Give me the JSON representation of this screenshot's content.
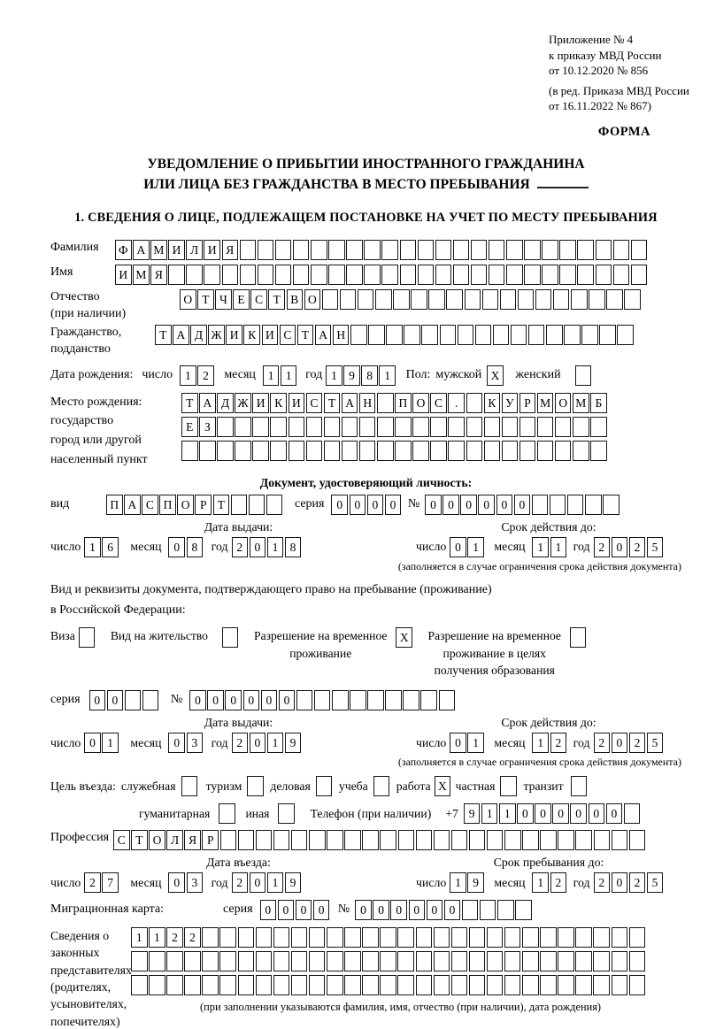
{
  "annex": {
    "lines": [
      "Приложение № 4",
      "к приказу МВД России",
      "от 10.12.2020 № 856"
    ],
    "note_lines": [
      "(в ред. Приказа МВД России",
      "от 16.11.2022 № 867)"
    ],
    "form_word": "ФОРМА"
  },
  "title": {
    "line1": "УВЕДОМЛЕНИЕ О ПРИБЫТИИ ИНОСТРАННОГО ГРАЖДАНИНА",
    "line2": "ИЛИ ЛИЦА БЕЗ ГРАЖДАНСТВА В МЕСТО ПРЕБЫВАНИЯ"
  },
  "section1_heading": "1. СВЕДЕНИЯ О ЛИЦЕ, ПОДЛЕЖАЩЕМ ПОСТАНОВКЕ НА УЧЕТ ПО МЕСТУ ПРЕБЫВАНИЯ",
  "labels": {
    "day": "число",
    "month": "месяц",
    "year": "год",
    "series": "серия",
    "number_sign": "№",
    "issue_date": "Дата выдачи:",
    "valid_until": "Срок действия до:",
    "entry_date": "Дата въезда:",
    "stay_until": "Срок пребывания до:",
    "restriction_note": "(заполняется в случае ограничения срока действия документа)",
    "phone": "Телефон (при наличии)",
    "phone_prefix": "+7"
  },
  "person": {
    "surname": {
      "label": "Фамилия",
      "boxes": {
        "chars": "ФАМИЛИЯ",
        "count": 30
      }
    },
    "given_name": {
      "label": "Имя",
      "boxes": {
        "chars": "ИМЯ",
        "count": 30
      }
    },
    "patronymic": {
      "label": "Отчество",
      "label_note": "(при наличии)",
      "boxes": {
        "chars": "ОТЧЕСТВО",
        "count": 26
      }
    },
    "citizenship": {
      "label": "Гражданство,",
      "label2": "подданство",
      "boxes": {
        "chars": "ТАДЖИКИСТАН",
        "count": 27
      }
    },
    "birth_date": {
      "label": "Дата рождения:",
      "day": "12",
      "month": "11",
      "year": "1981"
    },
    "sex": {
      "label": "Пол:",
      "male_label": "мужской",
      "male_box": "X",
      "female_label": "женский",
      "female_box": " "
    },
    "birth_place": {
      "label": "Место рождения:",
      "label_lines": [
        "государство",
        "город или другой",
        "населенный пункт"
      ],
      "row1": {
        "chars": "ТАДЖИКИСТАН ПОС. КУРМОМБ",
        "count": 24
      },
      "row2": {
        "chars": "ЕЗ",
        "count": 24
      },
      "row3": {
        "chars": "",
        "count": 24
      }
    }
  },
  "identity_doc": {
    "heading": "Документ, удостоверяющий личность:",
    "kind_label": "вид",
    "kind": {
      "chars": "ПАСПОРТ",
      "count": 10
    },
    "series": {
      "chars": "0000",
      "count": 4
    },
    "number": {
      "chars": "000000",
      "count": 11
    },
    "issue": {
      "day": "16",
      "month": "08",
      "year": "2018"
    },
    "expiry": {
      "day": "01",
      "month": "11",
      "year": "2025"
    }
  },
  "residence_doc": {
    "heading1": "Вид и реквизиты документа, подтверждающего право на пребывание (проживание)",
    "heading2": "в Российской Федерации:",
    "options": [
      {
        "lines": [
          "Виза"
        ],
        "box": " "
      },
      {
        "lines": [
          "Вид на жительство"
        ],
        "box": " "
      },
      {
        "lines": [
          "Разрешение на временное",
          "проживание"
        ],
        "box": "X"
      },
      {
        "lines": [
          "Разрешение на временное",
          "проживание в целях",
          "получения образования"
        ],
        "box": " "
      }
    ],
    "series": {
      "chars": "00",
      "count": 4
    },
    "number": {
      "chars": "000000",
      "count": 15
    },
    "issue": {
      "day": "01",
      "month": "03",
      "year": "2019"
    },
    "expiry": {
      "day": "01",
      "month": "12",
      "year": "2025"
    }
  },
  "entry": {
    "purpose_label": "Цель въезда:",
    "purposes": [
      {
        "label": "служебная",
        "box": " "
      },
      {
        "label": "туризм",
        "box": " "
      },
      {
        "label": "деловая",
        "box": " "
      },
      {
        "label": "учеба",
        "box": " "
      },
      {
        "label": "работа",
        "box": "X"
      },
      {
        "label": "частная",
        "box": " "
      },
      {
        "label": "транзит",
        "box": " "
      }
    ],
    "purposes2": [
      {
        "label": "гуманитарная",
        "box": " "
      },
      {
        "label": "иная",
        "box": " "
      }
    ],
    "phone": {
      "chars": "911000000",
      "count": 10
    },
    "profession": {
      "label": "Профессия",
      "boxes": {
        "chars": "СТОЛЯР",
        "count": 30
      }
    },
    "entry_date": {
      "day": "27",
      "month": "03",
      "year": "2019"
    },
    "stay_until": {
      "day": "19",
      "month": "12",
      "year": "2025"
    }
  },
  "migration_card": {
    "label": "Миграционная карта:",
    "series": {
      "chars": "0000",
      "count": 4
    },
    "number": {
      "chars": "000000",
      "count": 10
    }
  },
  "representatives": {
    "label_lines": [
      "Сведения о",
      "законных",
      "представителях",
      "(родителях,",
      "усыновителях,",
      "попечителях)"
    ],
    "row1": {
      "chars": "1122",
      "count": 29
    },
    "row2": {
      "chars": "",
      "count": 29
    },
    "row3": {
      "chars": "",
      "count": 29
    },
    "note": "(при заполнении указываются фамилия, имя, отчество (при наличии), дата рождения)"
  }
}
